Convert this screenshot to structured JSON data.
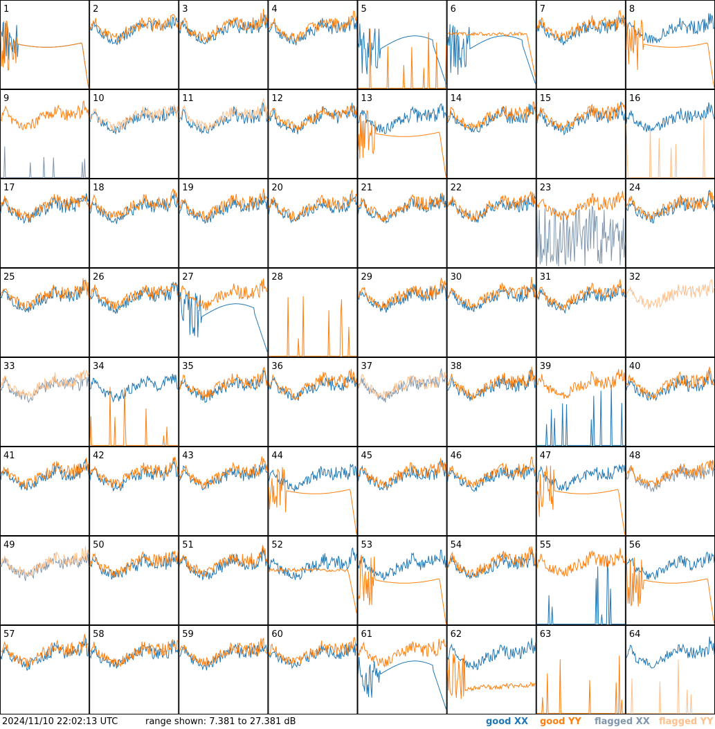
{
  "chart_data": {
    "type": "line",
    "panels": 64,
    "grid": "8x8",
    "panel_labels": [
      "1",
      "2",
      "3",
      "4",
      "5",
      "6",
      "7",
      "8",
      "9",
      "10",
      "11",
      "12",
      "13",
      "14",
      "15",
      "16",
      "17",
      "18",
      "19",
      "20",
      "21",
      "22",
      "23",
      "24",
      "25",
      "26",
      "27",
      "28",
      "29",
      "30",
      "31",
      "32",
      "33",
      "34",
      "35",
      "36",
      "37",
      "38",
      "39",
      "40",
      "41",
      "42",
      "43",
      "44",
      "45",
      "46",
      "47",
      "48",
      "49",
      "50",
      "51",
      "52",
      "53",
      "54",
      "55",
      "56",
      "57",
      "58",
      "59",
      "60",
      "61",
      "62",
      "63",
      "64"
    ],
    "y_range_db": [
      7.381,
      27.381
    ],
    "series": [
      {
        "name": "good XX",
        "color": "#1f77b4"
      },
      {
        "name": "good YY",
        "color": "#ff7f0e"
      },
      {
        "name": "flagged XX",
        "color": "#7f96ad"
      },
      {
        "name": "flagged YY",
        "color": "#ffbf8a"
      }
    ],
    "panel_shapes": {
      "1": [
        "dip",
        "dip"
      ],
      "2": [
        "normal",
        "normal"
      ],
      "3": [
        "normal",
        "normal"
      ],
      "4": [
        "normal",
        "normal"
      ],
      "5": [
        "bowl",
        "spikes"
      ],
      "6": [
        "bowl",
        "flat"
      ],
      "7": [
        "normal",
        "normal"
      ],
      "8": [
        "normal",
        "dip"
      ],
      "9": [
        "spikes",
        "normal"
      ],
      "10": [
        "normal",
        "normal"
      ],
      "11": [
        "normal",
        "normal"
      ],
      "12": [
        "normal",
        "normal"
      ],
      "13": [
        "normal",
        "dip"
      ],
      "14": [
        "normal",
        "normal"
      ],
      "15": [
        "normal",
        "normal"
      ],
      "16": [
        "normal",
        "spikes"
      ],
      "17": [
        "normal",
        "normal"
      ],
      "18": [
        "normal",
        "normal"
      ],
      "19": [
        "normal",
        "normal"
      ],
      "20": [
        "normal",
        "normal"
      ],
      "21": [
        "normal",
        "normal"
      ],
      "22": [
        "normal",
        "normal"
      ],
      "23": [
        "noise",
        "normal"
      ],
      "24": [
        "normal",
        "normal"
      ],
      "25": [
        "normal",
        "normal"
      ],
      "26": [
        "normal",
        "normal"
      ],
      "27": [
        "bowl",
        "normal"
      ],
      "28": [
        "none",
        "spikes"
      ],
      "29": [
        "normal",
        "normal"
      ],
      "30": [
        "normal",
        "normal"
      ],
      "31": [
        "normal",
        "normal"
      ],
      "32": [
        "none",
        "normal"
      ],
      "33": [
        "normal",
        "normal"
      ],
      "34": [
        "normal",
        "spikes"
      ],
      "35": [
        "normal",
        "normal"
      ],
      "36": [
        "normal",
        "normal"
      ],
      "37": [
        "normal",
        "normal"
      ],
      "38": [
        "normal",
        "normal"
      ],
      "39": [
        "spikes",
        "normal"
      ],
      "40": [
        "normal",
        "normal"
      ],
      "41": [
        "normal",
        "normal"
      ],
      "42": [
        "normal",
        "normal"
      ],
      "43": [
        "normal",
        "normal"
      ],
      "44": [
        "normal",
        "dip"
      ],
      "45": [
        "normal",
        "normal"
      ],
      "46": [
        "normal",
        "normal"
      ],
      "47": [
        "normal",
        "dip"
      ],
      "48": [
        "normal",
        "normal"
      ],
      "49": [
        "normal",
        "normal"
      ],
      "50": [
        "normal",
        "normal"
      ],
      "51": [
        "normal",
        "normal"
      ],
      "52": [
        "normal",
        "flat"
      ],
      "53": [
        "normal",
        "dip"
      ],
      "54": [
        "normal",
        "normal"
      ],
      "55": [
        "spikes",
        "normal"
      ],
      "56": [
        "normal",
        "dip"
      ],
      "57": [
        "normal",
        "normal"
      ],
      "58": [
        "normal",
        "normal"
      ],
      "59": [
        "normal",
        "normal"
      ],
      "60": [
        "normal",
        "normal"
      ],
      "61": [
        "bowl",
        "normal"
      ],
      "62": [
        "normal",
        "low"
      ],
      "63": [
        "none",
        "spikes"
      ],
      "64": [
        "normal",
        "spikes"
      ]
    },
    "flagged_panels_xx": [
      "9",
      "23",
      "33",
      "37",
      "48",
      "49"
    ],
    "flagged_panels_yy": [
      "10",
      "11",
      "16",
      "32",
      "33",
      "37",
      "49",
      "64"
    ]
  },
  "footer": {
    "timestamp": "2024/11/10 22:02:13 UTC",
    "range_text": "range shown: 7.381 to 27.381 dB",
    "legend": [
      {
        "label": "good XX",
        "color": "#1f77b4"
      },
      {
        "label": "good YY",
        "color": "#ff7f0e"
      },
      {
        "label": "flagged XX",
        "color": "#7f96ad"
      },
      {
        "label": "flagged YY",
        "color": "#ffbf8a"
      }
    ]
  }
}
